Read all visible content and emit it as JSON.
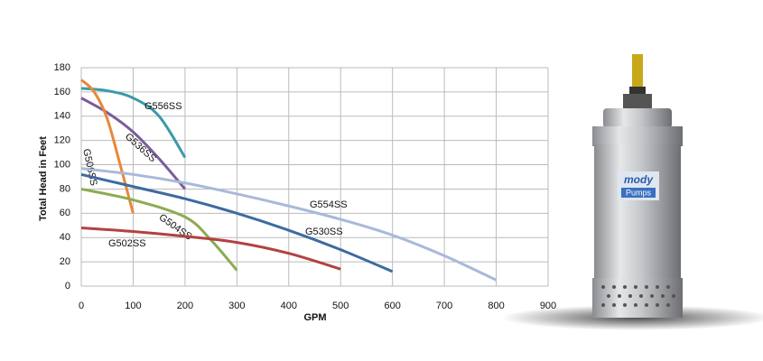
{
  "chart_data": {
    "type": "line",
    "y_label": "Total Head in Feet",
    "x_label": "GPM",
    "xlim": [
      0,
      900
    ],
    "xticks": [
      0,
      100,
      200,
      300,
      400,
      500,
      600,
      700,
      800,
      900
    ],
    "ylim": [
      0,
      180
    ],
    "yticks": [
      0,
      20,
      40,
      60,
      80,
      100,
      120,
      140,
      160,
      180
    ],
    "grid": true,
    "series": [
      {
        "name": "G556SS",
        "color": "#3b9aa9",
        "x": [
          0,
          50,
          100,
          150,
          200
        ],
        "values": [
          163,
          161,
          155,
          140,
          106
        ]
      },
      {
        "name": "G536SS",
        "color": "#7b5c9c",
        "x": [
          0,
          50,
          100,
          150,
          200
        ],
        "values": [
          155,
          143,
          127,
          105,
          80
        ]
      },
      {
        "name": "G506SS",
        "color": "#e8883a",
        "x": [
          0,
          25,
          50,
          75,
          100
        ],
        "values": [
          170,
          160,
          138,
          100,
          60
        ]
      },
      {
        "name": "G504SS",
        "color": "#8dab52",
        "x": [
          0,
          100,
          200,
          250,
          300
        ],
        "values": [
          80,
          71,
          57,
          38,
          13
        ]
      },
      {
        "name": "G502SS",
        "color": "#b34141",
        "x": [
          0,
          100,
          200,
          300,
          400,
          500
        ],
        "values": [
          48,
          45,
          41,
          36,
          27,
          14
        ]
      },
      {
        "name": "G530SS",
        "color": "#3d6b9f",
        "x": [
          0,
          100,
          200,
          300,
          400,
          500,
          600
        ],
        "values": [
          92,
          82,
          72,
          60,
          46,
          30,
          12
        ]
      },
      {
        "name": "G554SS",
        "color": "#a9b9d9",
        "x": [
          0,
          100,
          200,
          300,
          400,
          500,
          600,
          700,
          800
        ],
        "values": [
          97,
          92,
          85,
          76,
          66,
          55,
          42,
          25,
          5
        ]
      }
    ]
  },
  "pump_logo": [
    "mody",
    "Pumps"
  ]
}
